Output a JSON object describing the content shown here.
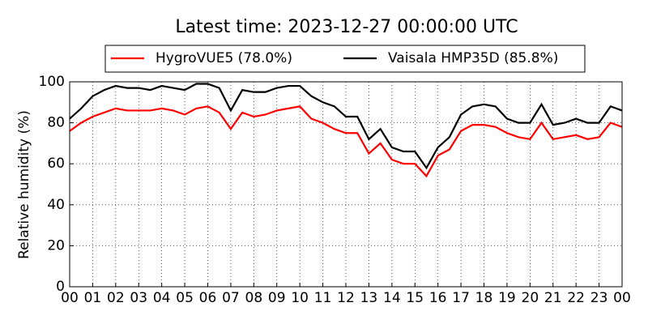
{
  "chart_data": {
    "type": "line",
    "title": "Latest time: 2023-12-27 00:00:00 UTC",
    "y_label": "Relative humidity (%)",
    "x": [
      0,
      0.5,
      1,
      1.5,
      2,
      2.5,
      3,
      3.5,
      4,
      4.5,
      5,
      5.5,
      6,
      6.5,
      7,
      7.5,
      8,
      8.5,
      9,
      9.5,
      10,
      10.5,
      11,
      11.5,
      12,
      12.5,
      13,
      13.5,
      14,
      14.5,
      15,
      15.5,
      16,
      16.5,
      17,
      17.5,
      18,
      18.5,
      19,
      19.5,
      20,
      20.5,
      21,
      21.5,
      22,
      22.5,
      23,
      23.5,
      24
    ],
    "series": [
      {
        "name": "HygroVUE5 (78.0%)",
        "color": "#ff0000",
        "values": [
          76,
          80,
          83,
          85,
          87,
          86,
          86,
          86,
          87,
          86,
          84,
          87,
          88,
          85,
          77,
          85,
          83,
          84,
          86,
          87,
          88,
          82,
          80,
          77,
          75,
          75,
          65,
          70,
          62,
          60,
          60,
          54,
          64,
          67,
          76,
          79,
          79,
          78,
          75,
          73,
          72,
          80,
          72,
          73,
          74,
          72,
          73,
          80,
          78
        ]
      },
      {
        "name": "Vaisala HMP35D (85.8%)",
        "color": "#000000",
        "values": [
          82,
          87,
          93,
          96,
          98,
          97,
          97,
          96,
          98,
          97,
          96,
          99,
          99,
          97,
          86,
          96,
          95,
          95,
          97,
          98,
          98,
          93,
          90,
          88,
          83,
          83,
          72,
          77,
          68,
          66,
          66,
          58,
          68,
          73,
          84,
          88,
          89,
          88,
          82,
          80,
          80,
          89,
          79,
          80,
          82,
          80,
          80,
          88,
          86
        ]
      }
    ],
    "xlim": [
      0,
      24
    ],
    "xticks": [
      {
        "value": 0,
        "label": "00"
      },
      {
        "value": 1,
        "label": "01"
      },
      {
        "value": 2,
        "label": "02"
      },
      {
        "value": 3,
        "label": "03"
      },
      {
        "value": 4,
        "label": "04"
      },
      {
        "value": 5,
        "label": "05"
      },
      {
        "value": 6,
        "label": "06"
      },
      {
        "value": 7,
        "label": "07"
      },
      {
        "value": 8,
        "label": "08"
      },
      {
        "value": 9,
        "label": "09"
      },
      {
        "value": 10,
        "label": "10"
      },
      {
        "value": 11,
        "label": "11"
      },
      {
        "value": 12,
        "label": "12"
      },
      {
        "value": 13,
        "label": "13"
      },
      {
        "value": 14,
        "label": "14"
      },
      {
        "value": 15,
        "label": "15"
      },
      {
        "value": 16,
        "label": "16"
      },
      {
        "value": 17,
        "label": "17"
      },
      {
        "value": 18,
        "label": "18"
      },
      {
        "value": 19,
        "label": "19"
      },
      {
        "value": 20,
        "label": "20"
      },
      {
        "value": 21,
        "label": "21"
      },
      {
        "value": 22,
        "label": "22"
      },
      {
        "value": 23,
        "label": "23"
      },
      {
        "value": 24,
        "label": "00"
      }
    ],
    "ylim": [
      0,
      100
    ],
    "yticks": [
      0,
      20,
      40,
      60,
      80,
      100
    ],
    "grid": true,
    "legend": "top"
  }
}
